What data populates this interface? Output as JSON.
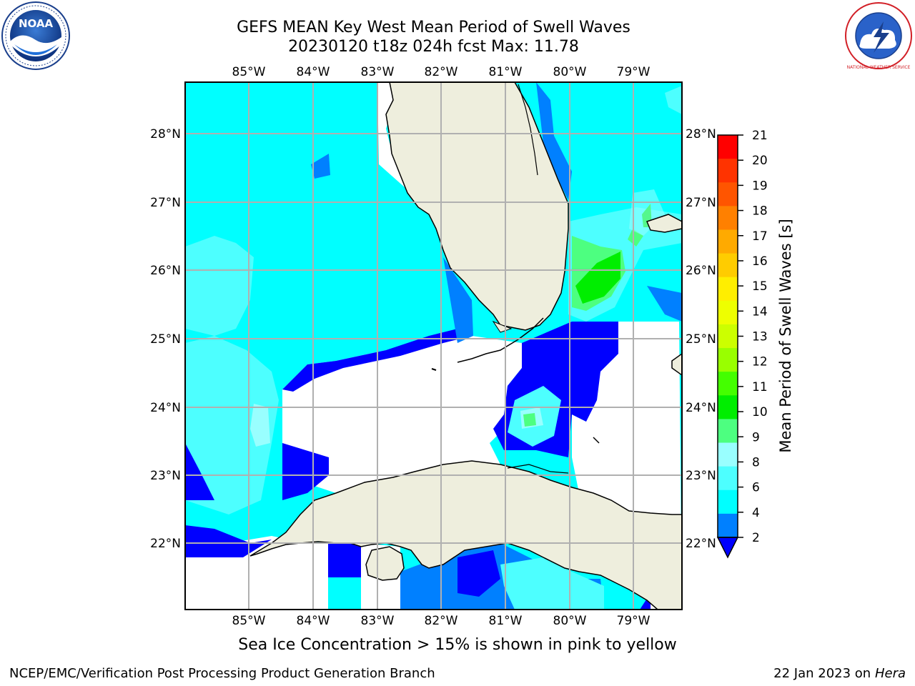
{
  "header": {
    "title_line1": "GEFS MEAN Key West Mean Period of Swell Waves",
    "title_line2": "20230120 t18z 024h fcst   Max: 11.78"
  },
  "map": {
    "lon_labels": [
      "85°W",
      "84°W",
      "83°W",
      "82°W",
      "81°W",
      "80°W",
      "79°W"
    ],
    "lat_labels": [
      "28°N",
      "27°N",
      "26°N",
      "25°N",
      "24°N",
      "23°N",
      "22°N"
    ],
    "colors": {
      "ocean_cyan": "#00ffff",
      "light_cyan": "#4dffff",
      "pale_cyan": "#99ffff",
      "mid_blue": "#0080ff",
      "dark_blue": "#0000ff",
      "land": "#eeeedd",
      "grid": "#b0b0b0"
    }
  },
  "colorbar": {
    "label": "Mean Period of Swell Waves [s]",
    "ticks": [
      "21",
      "20",
      "19",
      "18",
      "17",
      "16",
      "15",
      "14",
      "13",
      "12",
      "11",
      "10",
      "9",
      "8",
      "6",
      "4",
      "2"
    ],
    "colors": [
      "#ff0000",
      "#ff3300",
      "#ff5500",
      "#ff8000",
      "#ffaa00",
      "#ffcc00",
      "#ffee00",
      "#eeff00",
      "#ccff00",
      "#99ff00",
      "#44ff00",
      "#00ee00",
      "#4dff80",
      "#99ffff",
      "#4dffff",
      "#00ffff",
      "#0080ff"
    ],
    "extend_color": "#0000ff"
  },
  "footer": {
    "note": "Sea Ice Concentration > 15% is shown in pink to yellow",
    "credit": "NCEP/EMC/Verification Post Processing Product Generation Branch",
    "date_text": "22 Jan 2023 on ",
    "date_machine": "Hera"
  },
  "logos": {
    "left_text": "NOAA",
    "right_text": "NATIONAL WEATHER SERVICE"
  }
}
